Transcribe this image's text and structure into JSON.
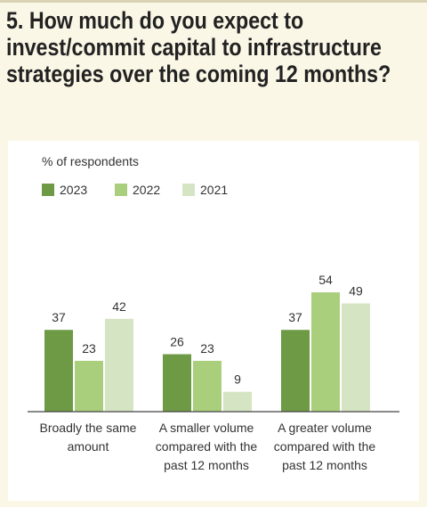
{
  "title": "5. How much do you expect to invest/commit capital to infrastructure strategies over the coming 12 months?",
  "colors": {
    "2023": "#6e9a45",
    "2022": "#a9cf7d",
    "2021": "#d5e5c3"
  },
  "chart_data": {
    "type": "bar",
    "unit_label": "% of respondents",
    "legend_placement": "top-left",
    "grid": false,
    "ylim": [
      0,
      60
    ],
    "categories": [
      [
        "Broadly the same",
        "amount"
      ],
      [
        "A smaller volume",
        "compared with the",
        "past 12 months"
      ],
      [
        "A greater volume",
        "compared with the",
        "past 12 months"
      ]
    ],
    "series": [
      {
        "name": "2023",
        "values": [
          37,
          26,
          37
        ]
      },
      {
        "name": "2022",
        "values": [
          23,
          23,
          54
        ]
      },
      {
        "name": "2021",
        "values": [
          42,
          9,
          49
        ]
      }
    ]
  }
}
